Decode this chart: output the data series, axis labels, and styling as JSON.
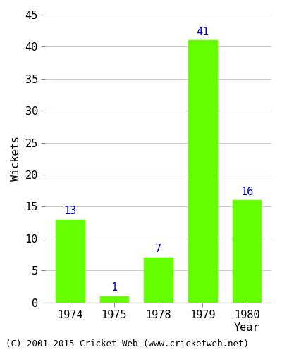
{
  "categories": [
    "1974",
    "1975",
    "1978",
    "1979",
    "1980"
  ],
  "values": [
    13,
    1,
    7,
    41,
    16
  ],
  "bar_color": "#66ff00",
  "bar_edgecolor": "#66ff00",
  "label_color": "#0000cc",
  "xlabel": "Year",
  "ylabel": "Wickets",
  "ylim": [
    0,
    45
  ],
  "yticks": [
    0,
    5,
    10,
    15,
    20,
    25,
    30,
    35,
    40,
    45
  ],
  "grid_color": "#cccccc",
  "background_color": "#ffffff",
  "axes_background": "#ffffff",
  "tick_fontsize": 11,
  "annotation_fontsize": 11,
  "footer_text": "(C) 2001-2015 Cricket Web (www.cricketweb.net)",
  "footer_fontsize": 9
}
